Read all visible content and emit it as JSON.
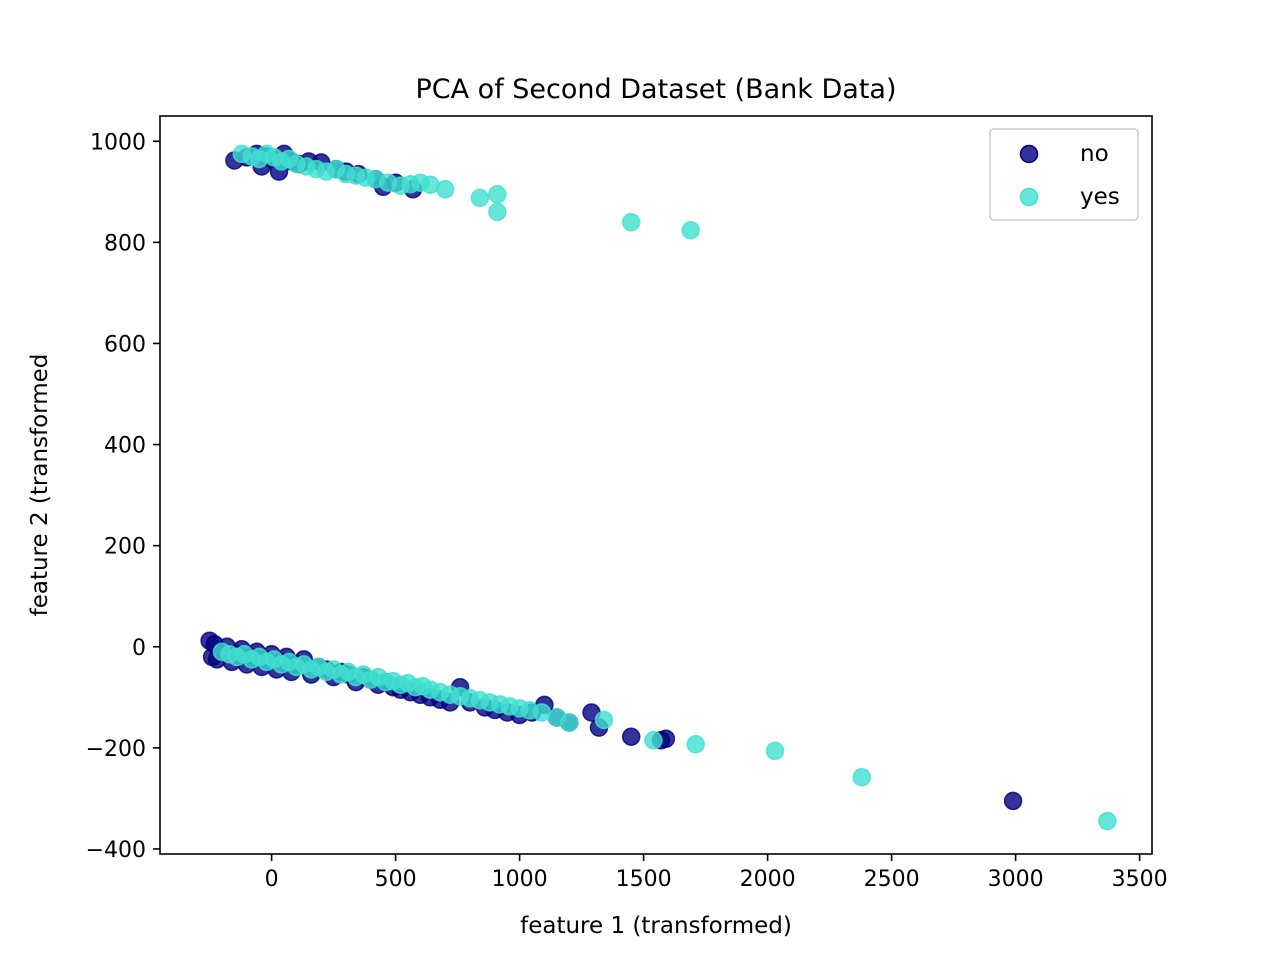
{
  "chart_data": {
    "type": "scatter",
    "title": "PCA of Second Dataset (Bank Data)",
    "xlabel": "feature 1 (transformed)",
    "ylabel": "feature 2 (transformed",
    "xlim": [
      -450,
      3550
    ],
    "ylim": [
      -410,
      1050
    ],
    "xticks": [
      0,
      500,
      1000,
      1500,
      2000,
      2500,
      3000,
      3500
    ],
    "yticks": [
      -400,
      -200,
      0,
      200,
      400,
      600,
      800,
      1000
    ],
    "xtick_labels": [
      "0",
      "500",
      "1000",
      "1500",
      "2000",
      "2500",
      "3000",
      "3500"
    ],
    "ytick_labels": [
      "−400",
      "−200",
      "0",
      "200",
      "400",
      "600",
      "800",
      "1000"
    ],
    "grid": false,
    "legend_position": "top-right",
    "series": [
      {
        "name": "no",
        "color": "#000080",
        "points": [
          [
            -250,
            12
          ],
          [
            -240,
            -20
          ],
          [
            -230,
            5
          ],
          [
            -220,
            -25
          ],
          [
            -200,
            -10
          ],
          [
            -180,
            0
          ],
          [
            -160,
            -30
          ],
          [
            -140,
            -15
          ],
          [
            -120,
            -5
          ],
          [
            -100,
            -35
          ],
          [
            -80,
            -20
          ],
          [
            -60,
            -10
          ],
          [
            -40,
            -40
          ],
          [
            -20,
            -25
          ],
          [
            0,
            -15
          ],
          [
            20,
            -45
          ],
          [
            40,
            -30
          ],
          [
            60,
            -20
          ],
          [
            80,
            -50
          ],
          [
            100,
            -35
          ],
          [
            130,
            -25
          ],
          [
            160,
            -55
          ],
          [
            190,
            -40
          ],
          [
            220,
            -45
          ],
          [
            250,
            -60
          ],
          [
            280,
            -50
          ],
          [
            310,
            -55
          ],
          [
            340,
            -70
          ],
          [
            370,
            -60
          ],
          [
            400,
            -65
          ],
          [
            430,
            -75
          ],
          [
            460,
            -70
          ],
          [
            490,
            -80
          ],
          [
            520,
            -85
          ],
          [
            560,
            -90
          ],
          [
            600,
            -95
          ],
          [
            640,
            -100
          ],
          [
            680,
            -105
          ],
          [
            720,
            -110
          ],
          [
            760,
            -80
          ],
          [
            800,
            -110
          ],
          [
            860,
            -120
          ],
          [
            900,
            -125
          ],
          [
            950,
            -130
          ],
          [
            1000,
            -135
          ],
          [
            1050,
            -130
          ],
          [
            1100,
            -115
          ],
          [
            1150,
            -140
          ],
          [
            1200,
            -150
          ],
          [
            1290,
            -130
          ],
          [
            1320,
            -160
          ],
          [
            1450,
            -178
          ],
          [
            1570,
            -185
          ],
          [
            1590,
            -182
          ],
          [
            2990,
            -305
          ],
          [
            -150,
            962
          ],
          [
            -100,
            968
          ],
          [
            -60,
            975
          ],
          [
            -40,
            950
          ],
          [
            -20,
            970
          ],
          [
            0,
            965
          ],
          [
            30,
            940
          ],
          [
            50,
            975
          ],
          [
            80,
            960
          ],
          [
            110,
            955
          ],
          [
            150,
            960
          ],
          [
            200,
            958
          ],
          [
            260,
            945
          ],
          [
            300,
            940
          ],
          [
            350,
            935
          ],
          [
            420,
            925
          ],
          [
            450,
            910
          ],
          [
            500,
            918
          ],
          [
            570,
            905
          ]
        ]
      },
      {
        "name": "yes",
        "color": "#40e0d0",
        "points": [
          [
            -200,
            -10
          ],
          [
            -170,
            -15
          ],
          [
            -140,
            -20
          ],
          [
            -110,
            -15
          ],
          [
            -80,
            -25
          ],
          [
            -50,
            -20
          ],
          [
            -20,
            -30
          ],
          [
            10,
            -25
          ],
          [
            40,
            -35
          ],
          [
            70,
            -30
          ],
          [
            100,
            -40
          ],
          [
            130,
            -35
          ],
          [
            160,
            -45
          ],
          [
            190,
            -40
          ],
          [
            220,
            -50
          ],
          [
            250,
            -45
          ],
          [
            280,
            -55
          ],
          [
            310,
            -50
          ],
          [
            340,
            -60
          ],
          [
            370,
            -55
          ],
          [
            400,
            -65
          ],
          [
            430,
            -60
          ],
          [
            460,
            -70
          ],
          [
            490,
            -68
          ],
          [
            520,
            -75
          ],
          [
            550,
            -72
          ],
          [
            580,
            -80
          ],
          [
            610,
            -78
          ],
          [
            640,
            -85
          ],
          [
            680,
            -90
          ],
          [
            720,
            -95
          ],
          [
            760,
            -98
          ],
          [
            800,
            -102
          ],
          [
            840,
            -106
          ],
          [
            880,
            -110
          ],
          [
            920,
            -114
          ],
          [
            960,
            -118
          ],
          [
            1000,
            -122
          ],
          [
            1040,
            -126
          ],
          [
            1090,
            -130
          ],
          [
            1150,
            -140
          ],
          [
            1200,
            -150
          ],
          [
            1340,
            -145
          ],
          [
            1540,
            -185
          ],
          [
            1710,
            -193
          ],
          [
            2030,
            -206
          ],
          [
            2380,
            -258
          ],
          [
            3370,
            -345
          ],
          [
            -120,
            975
          ],
          [
            -80,
            970
          ],
          [
            -50,
            965
          ],
          [
            -20,
            975
          ],
          [
            10,
            968
          ],
          [
            40,
            960
          ],
          [
            70,
            965
          ],
          [
            100,
            955
          ],
          [
            140,
            950
          ],
          [
            180,
            945
          ],
          [
            220,
            940
          ],
          [
            260,
            945
          ],
          [
            300,
            935
          ],
          [
            340,
            932
          ],
          [
            380,
            928
          ],
          [
            420,
            925
          ],
          [
            470,
            918
          ],
          [
            520,
            912
          ],
          [
            560,
            915
          ],
          [
            600,
            918
          ],
          [
            640,
            914
          ],
          [
            700,
            905
          ],
          [
            840,
            888
          ],
          [
            910,
            895
          ],
          [
            910,
            860
          ],
          [
            1450,
            840
          ],
          [
            1690,
            824
          ]
        ]
      }
    ]
  }
}
